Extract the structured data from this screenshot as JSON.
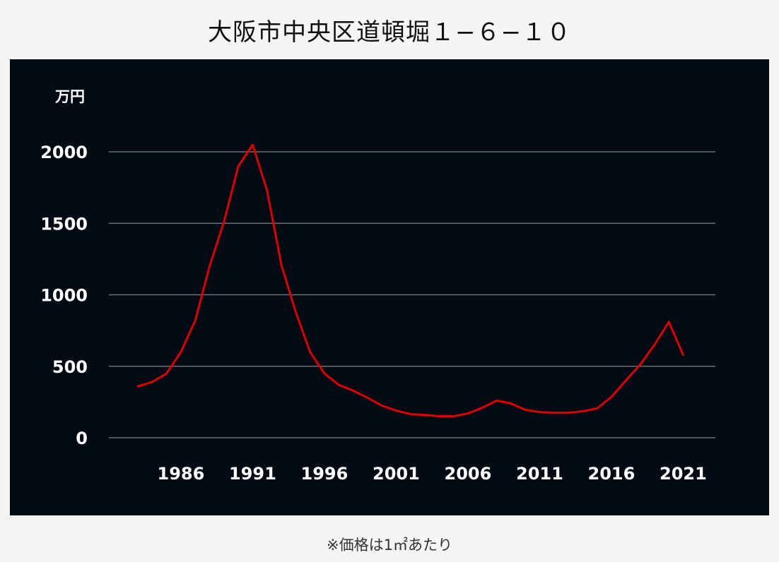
{
  "title": "大阪市中央区道頓堀１−６−１０",
  "footnote": "※価格は1㎡あたり",
  "colors": {
    "page_background": "#f5f5f3",
    "panel_background": "#020a14",
    "gridline": "#6b6f74",
    "line": "#e00000",
    "axis_text": "#ffffff"
  },
  "chart_data": {
    "type": "line",
    "title": "大阪市中央区道頓堀１−６−１０",
    "ylabel": "万円",
    "xlabel": "",
    "ylim": [
      0,
      2000
    ],
    "xlim": [
      1983,
      2022
    ],
    "yticks": [
      {
        "value": 0,
        "label": "0"
      },
      {
        "value": 500,
        "label": "500"
      },
      {
        "value": 1000,
        "label": "1000"
      },
      {
        "value": 1500,
        "label": "1500"
      },
      {
        "value": 2000,
        "label": "2000"
      }
    ],
    "xticks": [
      {
        "value": 1986,
        "label": "1986"
      },
      {
        "value": 1991,
        "label": "1991"
      },
      {
        "value": 1996,
        "label": "1996"
      },
      {
        "value": 2001,
        "label": "2001"
      },
      {
        "value": 2006,
        "label": "2006"
      },
      {
        "value": 2011,
        "label": "2011"
      },
      {
        "value": 2016,
        "label": "2016"
      },
      {
        "value": 2021,
        "label": "2021"
      }
    ],
    "grid": true,
    "legend": "none",
    "x": [
      1983,
      1984,
      1985,
      1986,
      1987,
      1988,
      1989,
      1990,
      1991,
      1992,
      1993,
      1994,
      1995,
      1996,
      1997,
      1998,
      1999,
      2000,
      2001,
      2002,
      2003,
      2004,
      2005,
      2006,
      2007,
      2008,
      2009,
      2010,
      2011,
      2012,
      2013,
      2014,
      2015,
      2016,
      2017,
      2018,
      2019,
      2020,
      2021
    ],
    "series": [
      {
        "values": [
          360,
          390,
          450,
          600,
          820,
          1200,
          1510,
          1900,
          2050,
          1730,
          1210,
          880,
          600,
          450,
          370,
          330,
          280,
          225,
          190,
          165,
          160,
          150,
          150,
          170,
          210,
          260,
          240,
          195,
          180,
          175,
          175,
          185,
          205,
          285,
          400,
          510,
          650,
          810,
          580
        ]
      }
    ]
  }
}
